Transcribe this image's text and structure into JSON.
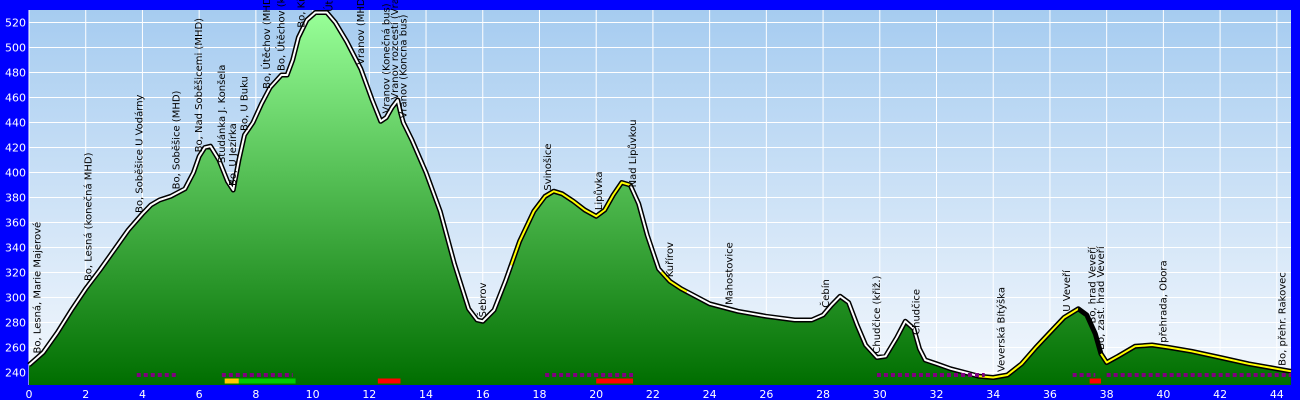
{
  "chart_data": {
    "type": "area",
    "title": "",
    "xlabel": "",
    "ylabel": "",
    "xlim": [
      0,
      44.5
    ],
    "ylim": [
      230,
      530
    ],
    "x_ticks": [
      0,
      2,
      4,
      6,
      8,
      10,
      12,
      14,
      16,
      18,
      20,
      22,
      24,
      26,
      28,
      30,
      32,
      34,
      36,
      38,
      40,
      42,
      44
    ],
    "y_ticks": [
      240,
      260,
      280,
      300,
      320,
      340,
      360,
      380,
      400,
      420,
      440,
      460,
      480,
      500,
      520
    ],
    "grid": true,
    "colors": {
      "background": "#0000ff",
      "plot_top": "#a6ccf0",
      "plot_bottom": "#f4f8fd",
      "fill_top": "#98ff98",
      "fill_bottom": "#006e00",
      "outline": "#000000",
      "route_white": "#ffffff",
      "route_yellow": "#ffff00",
      "marker_purple": "#800080",
      "marker_red": "#ff0000",
      "marker_green": "#00cc00",
      "marker_yellow": "#ffcc00"
    },
    "profile": [
      [
        0.0,
        246
      ],
      [
        0.5,
        256
      ],
      [
        1.0,
        272
      ],
      [
        1.5,
        290
      ],
      [
        2.0,
        307
      ],
      [
        2.5,
        322
      ],
      [
        3.0,
        338
      ],
      [
        3.5,
        354
      ],
      [
        4.0,
        367
      ],
      [
        4.3,
        374
      ],
      [
        4.6,
        378
      ],
      [
        5.0,
        381
      ],
      [
        5.5,
        387
      ],
      [
        5.8,
        400
      ],
      [
        6.0,
        413
      ],
      [
        6.2,
        420
      ],
      [
        6.4,
        421
      ],
      [
        6.7,
        410
      ],
      [
        7.0,
        393
      ],
      [
        7.2,
        386
      ],
      [
        7.4,
        410
      ],
      [
        7.6,
        430
      ],
      [
        7.9,
        440
      ],
      [
        8.2,
        455
      ],
      [
        8.5,
        468
      ],
      [
        8.9,
        478
      ],
      [
        9.1,
        478
      ],
      [
        9.3,
        490
      ],
      [
        9.5,
        508
      ],
      [
        9.8,
        522
      ],
      [
        10.1,
        528
      ],
      [
        10.5,
        528
      ],
      [
        10.8,
        520
      ],
      [
        11.2,
        505
      ],
      [
        11.7,
        483
      ],
      [
        12.1,
        458
      ],
      [
        12.4,
        441
      ],
      [
        12.6,
        444
      ],
      [
        12.8,
        452
      ],
      [
        13.0,
        458
      ],
      [
        13.1,
        448
      ],
      [
        13.2,
        440
      ],
      [
        13.5,
        426
      ],
      [
        14.0,
        400
      ],
      [
        14.5,
        369
      ],
      [
        15.0,
        327
      ],
      [
        15.5,
        291
      ],
      [
        15.8,
        282
      ],
      [
        16.0,
        281
      ],
      [
        16.4,
        290
      ],
      [
        16.8,
        313
      ],
      [
        17.3,
        345
      ],
      [
        17.8,
        369
      ],
      [
        18.2,
        381
      ],
      [
        18.5,
        385
      ],
      [
        18.8,
        383
      ],
      [
        19.2,
        377
      ],
      [
        19.6,
        370
      ],
      [
        20.0,
        365
      ],
      [
        20.3,
        370
      ],
      [
        20.6,
        382
      ],
      [
        20.9,
        392
      ],
      [
        21.2,
        390
      ],
      [
        21.5,
        375
      ],
      [
        21.8,
        350
      ],
      [
        22.2,
        323
      ],
      [
        22.6,
        313
      ],
      [
        23.0,
        307
      ],
      [
        24.0,
        295
      ],
      [
        25.0,
        289
      ],
      [
        26.0,
        285
      ],
      [
        27.0,
        282
      ],
      [
        27.6,
        282
      ],
      [
        28.0,
        286
      ],
      [
        28.3,
        294
      ],
      [
        28.6,
        301
      ],
      [
        28.9,
        296
      ],
      [
        29.2,
        278
      ],
      [
        29.5,
        262
      ],
      [
        29.9,
        252
      ],
      [
        30.2,
        253
      ],
      [
        30.6,
        268
      ],
      [
        30.9,
        281
      ],
      [
        31.2,
        275
      ],
      [
        31.4,
        259
      ],
      [
        31.6,
        250
      ],
      [
        32.0,
        247
      ],
      [
        32.5,
        243
      ],
      [
        33.0,
        240
      ],
      [
        33.5,
        237
      ],
      [
        34.0,
        236
      ],
      [
        34.5,
        238
      ],
      [
        35.0,
        247
      ],
      [
        35.5,
        260
      ],
      [
        36.0,
        272
      ],
      [
        36.5,
        284
      ],
      [
        37.0,
        291
      ],
      [
        37.3,
        286
      ],
      [
        37.6,
        271
      ],
      [
        37.8,
        255
      ],
      [
        38.0,
        248
      ],
      [
        38.4,
        253
      ],
      [
        39.0,
        261
      ],
      [
        39.6,
        262
      ],
      [
        40.2,
        260
      ],
      [
        41.0,
        257
      ],
      [
        42.0,
        252
      ],
      [
        43.0,
        247
      ],
      [
        44.0,
        243
      ],
      [
        44.5,
        241
      ]
    ],
    "route_segments": [
      {
        "from": 0,
        "to": 17.0,
        "color": "white"
      },
      {
        "from": 17.0,
        "to": 21.2,
        "color": "yellow"
      },
      {
        "from": 21.2,
        "to": 22.3,
        "color": "white"
      },
      {
        "from": 22.3,
        "to": 23.2,
        "color": "yellow"
      },
      {
        "from": 23.2,
        "to": 33.4,
        "color": "white"
      },
      {
        "from": 33.4,
        "to": 37.0,
        "color": "yellow"
      },
      {
        "from": 37.0,
        "to": 37.8,
        "color": "black"
      },
      {
        "from": 37.8,
        "to": 44.5,
        "color": "yellow"
      }
    ],
    "markers": [
      {
        "from": 3.8,
        "to": 5.2,
        "row": "upper",
        "style": "dots",
        "color": "purple"
      },
      {
        "from": 6.8,
        "to": 9.3,
        "row": "upper",
        "style": "dots",
        "color": "purple"
      },
      {
        "from": 6.9,
        "to": 7.4,
        "row": "lower",
        "style": "bar",
        "color": "yellow"
      },
      {
        "from": 7.4,
        "to": 9.4,
        "row": "lower",
        "style": "bar",
        "color": "green"
      },
      {
        "from": 12.3,
        "to": 13.1,
        "row": "lower",
        "style": "bar",
        "color": "red"
      },
      {
        "from": 18.2,
        "to": 21.3,
        "row": "upper",
        "style": "dots",
        "color": "purple"
      },
      {
        "from": 20.0,
        "to": 21.3,
        "row": "lower",
        "style": "bar",
        "color": "red"
      },
      {
        "from": 29.9,
        "to": 33.7,
        "row": "upper",
        "style": "dots",
        "color": "purple"
      },
      {
        "from": 36.8,
        "to": 37.6,
        "row": "upper",
        "style": "dots",
        "color": "purple"
      },
      {
        "from": 37.4,
        "to": 37.8,
        "row": "lower",
        "style": "bar",
        "color": "red"
      },
      {
        "from": 38.0,
        "to": 44.5,
        "row": "upper",
        "style": "dots",
        "color": "purple"
      }
    ],
    "waypoints": [
      {
        "x": 0.3,
        "label": "Bo, Lesná, Marie Majerové"
      },
      {
        "x": 2.1,
        "label": "Bo, Lesná (konečná MHD)"
      },
      {
        "x": 3.9,
        "label": "Bo, Soběšice U Vodárny"
      },
      {
        "x": 5.2,
        "label": "Bo, Soběšice (MHD)"
      },
      {
        "x": 6.0,
        "label": "Bo, Nad Soběšicemi (MHD)"
      },
      {
        "x": 6.8,
        "label": "Studánka J. Konšela"
      },
      {
        "x": 7.2,
        "label": "Bo, U Jezírka"
      },
      {
        "x": 7.6,
        "label": "Bo, U Buku"
      },
      {
        "x": 8.4,
        "label": "Bo, Útěchov (MHD) rozc."
      },
      {
        "x": 8.9,
        "label": "Bo, Útěchov (konečná MHD)"
      },
      {
        "x": 9.6,
        "label": "Bo, Křiž. Vranov - Útěch - Ad..."
      },
      {
        "x": 10.6,
        "label": "Útěch-Vran, odbočka Babí doly"
      },
      {
        "x": 11.7,
        "label": "Vranov (MHD)"
      },
      {
        "x": 12.6,
        "label": "Vranov (Konečná bus)"
      },
      {
        "x": 12.9,
        "label": "Vranov rozcestí (Vranov)"
      },
      {
        "x": 13.2,
        "label": "Vranov (Koncna bus)"
      },
      {
        "x": 16.0,
        "label": "Šebrov"
      },
      {
        "x": 18.3,
        "label": "Svinošice"
      },
      {
        "x": 20.1,
        "label": "Lipůvka"
      },
      {
        "x": 21.3,
        "label": "Nad Lipůvkou"
      },
      {
        "x": 22.6,
        "label": "Kuřírov"
      },
      {
        "x": 24.7,
        "label": "Mahostovice"
      },
      {
        "x": 28.1,
        "label": "Čebín"
      },
      {
        "x": 29.9,
        "label": "Chudčice (křiž.)"
      },
      {
        "x": 31.3,
        "label": "Chudčice"
      },
      {
        "x": 34.3,
        "label": "Veverská Bítýška"
      },
      {
        "x": 36.6,
        "label": "U Veveří"
      },
      {
        "x": 37.5,
        "label": "Bo, hrad Veveří"
      },
      {
        "x": 37.8,
        "label": "Bo, zast. hrad Veveří"
      },
      {
        "x": 40.0,
        "label": "přehrada, Obora"
      },
      {
        "x": 44.2,
        "label": "Bo, přehr. Rakovec"
      }
    ]
  }
}
